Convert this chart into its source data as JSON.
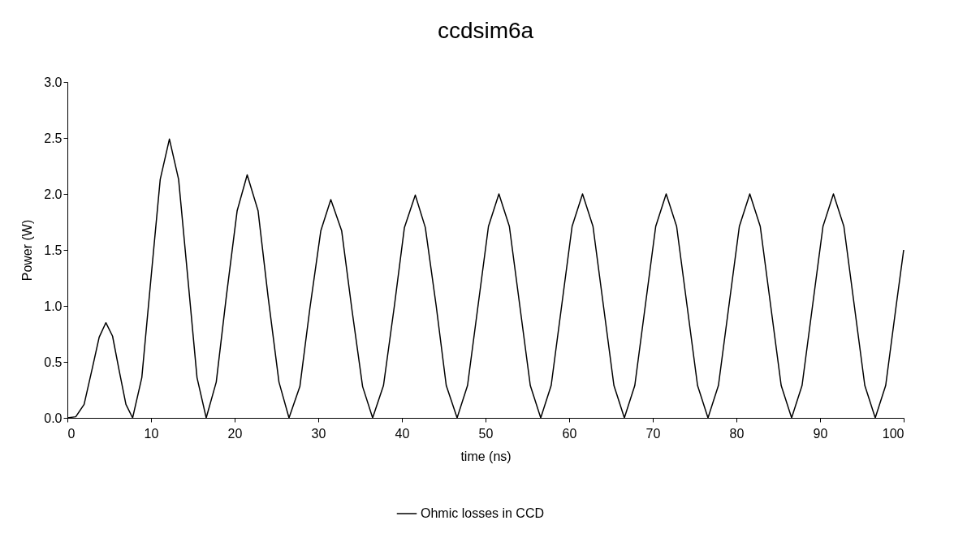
{
  "chart_data": {
    "type": "line",
    "title": "ccdsim6a",
    "xlabel": "time (ns)",
    "ylabel": "Power (W)",
    "x": [
      0,
      1,
      2,
      3,
      3.8,
      4.6,
      5.4,
      6.2,
      7.0,
      7.8,
      8.9,
      10.0,
      11.1,
      12.2,
      13.3,
      14.4,
      15.5,
      16.6,
      17.8,
      19.0,
      20.3,
      21.5,
      22.8,
      24.0,
      25.3,
      26.5,
      27.8,
      29.0,
      30.3,
      31.5,
      32.8,
      34.0,
      35.3,
      36.5,
      37.8,
      39.1,
      40.3,
      41.6,
      42.8,
      44.1,
      45.3,
      46.6,
      47.85,
      49.1,
      50.35,
      51.6,
      52.85,
      54.1,
      55.35,
      56.6,
      57.85,
      59.1,
      60.35,
      61.6,
      62.85,
      64.1,
      65.35,
      66.6,
      67.85,
      69.1,
      70.35,
      71.6,
      72.85,
      74.1,
      75.35,
      76.6,
      77.85,
      79.1,
      80.35,
      81.6,
      82.85,
      84.1,
      85.35,
      86.6,
      87.85,
      89.1,
      90.35,
      91.6,
      92.85,
      94.1,
      95.35,
      96.6,
      97.85,
      99.1,
      100
    ],
    "series": [
      {
        "name": "Ohmic losses in CCD",
        "color": "#000000",
        "values": [
          0,
          0.01,
          0.12,
          0.45,
          0.72,
          0.85,
          0.73,
          0.42,
          0.12,
          0,
          0.36,
          1.25,
          2.13,
          2.49,
          2.13,
          1.25,
          0.36,
          0,
          0.32,
          1.08,
          1.85,
          2.17,
          1.85,
          1.08,
          0.32,
          0,
          0.28,
          0.98,
          1.67,
          1.95,
          1.67,
          0.98,
          0.28,
          0,
          0.29,
          1.0,
          1.7,
          1.99,
          1.7,
          1.0,
          0.29,
          0,
          0.29,
          1.0,
          1.71,
          2.0,
          1.71,
          1.0,
          0.29,
          0,
          0.29,
          1.0,
          1.71,
          2.0,
          1.71,
          1.0,
          0.29,
          0,
          0.29,
          1.0,
          1.71,
          2.0,
          1.71,
          1.0,
          0.29,
          0,
          0.29,
          1.0,
          1.71,
          2.0,
          1.71,
          1.0,
          0.29,
          0,
          0.29,
          1.0,
          1.71,
          2.0,
          1.71,
          1.0,
          0.29,
          0,
          0.29,
          1.0,
          1.5
        ]
      }
    ],
    "xlim": [
      0,
      100
    ],
    "xticks": [
      0,
      10,
      20,
      30,
      40,
      50,
      60,
      70,
      80,
      90,
      100
    ],
    "ylim": [
      0,
      3
    ],
    "yticks": [
      {
        "value": 0,
        "label": "0.0"
      },
      {
        "value": 0.5,
        "label": "0.5"
      },
      {
        "value": 1,
        "label": "1.0"
      },
      {
        "value": 1.5,
        "label": "1.5"
      },
      {
        "value": 2,
        "label": "2.0"
      },
      {
        "value": 2.5,
        "label": "2.5"
      },
      {
        "value": 3,
        "label": "3.0"
      }
    ],
    "legend": "bottom",
    "grid": false,
    "marker": "none",
    "line_style": "solid"
  }
}
